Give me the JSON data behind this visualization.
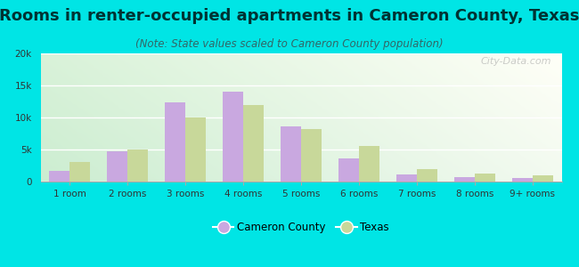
{
  "title": "Rooms in renter-occupied apartments in Cameron County, Texas",
  "subtitle": "(Note: State values scaled to Cameron County population)",
  "categories": [
    "1 room",
    "2 rooms",
    "3 rooms",
    "4 rooms",
    "5 rooms",
    "6 rooms",
    "7 rooms",
    "8 rooms",
    "9+ rooms"
  ],
  "cameron_county": [
    1700,
    4700,
    12400,
    14000,
    8600,
    3600,
    1100,
    700,
    500
  ],
  "texas": [
    3100,
    5000,
    10000,
    12000,
    8200,
    5600,
    2000,
    1300,
    1000
  ],
  "cameron_color": "#c9a8e0",
  "texas_color": "#c8d89a",
  "background_color": "#00e5e5",
  "ylim": [
    0,
    20000
  ],
  "yticks": [
    0,
    5000,
    10000,
    15000,
    20000
  ],
  "ytick_labels": [
    "0",
    "5k",
    "10k",
    "15k",
    "20k"
  ],
  "bar_width": 0.35,
  "legend_cameron": "Cameron County",
  "legend_texas": "Texas",
  "title_fontsize": 13,
  "subtitle_fontsize": 8.5,
  "watermark": "City-Data.com"
}
